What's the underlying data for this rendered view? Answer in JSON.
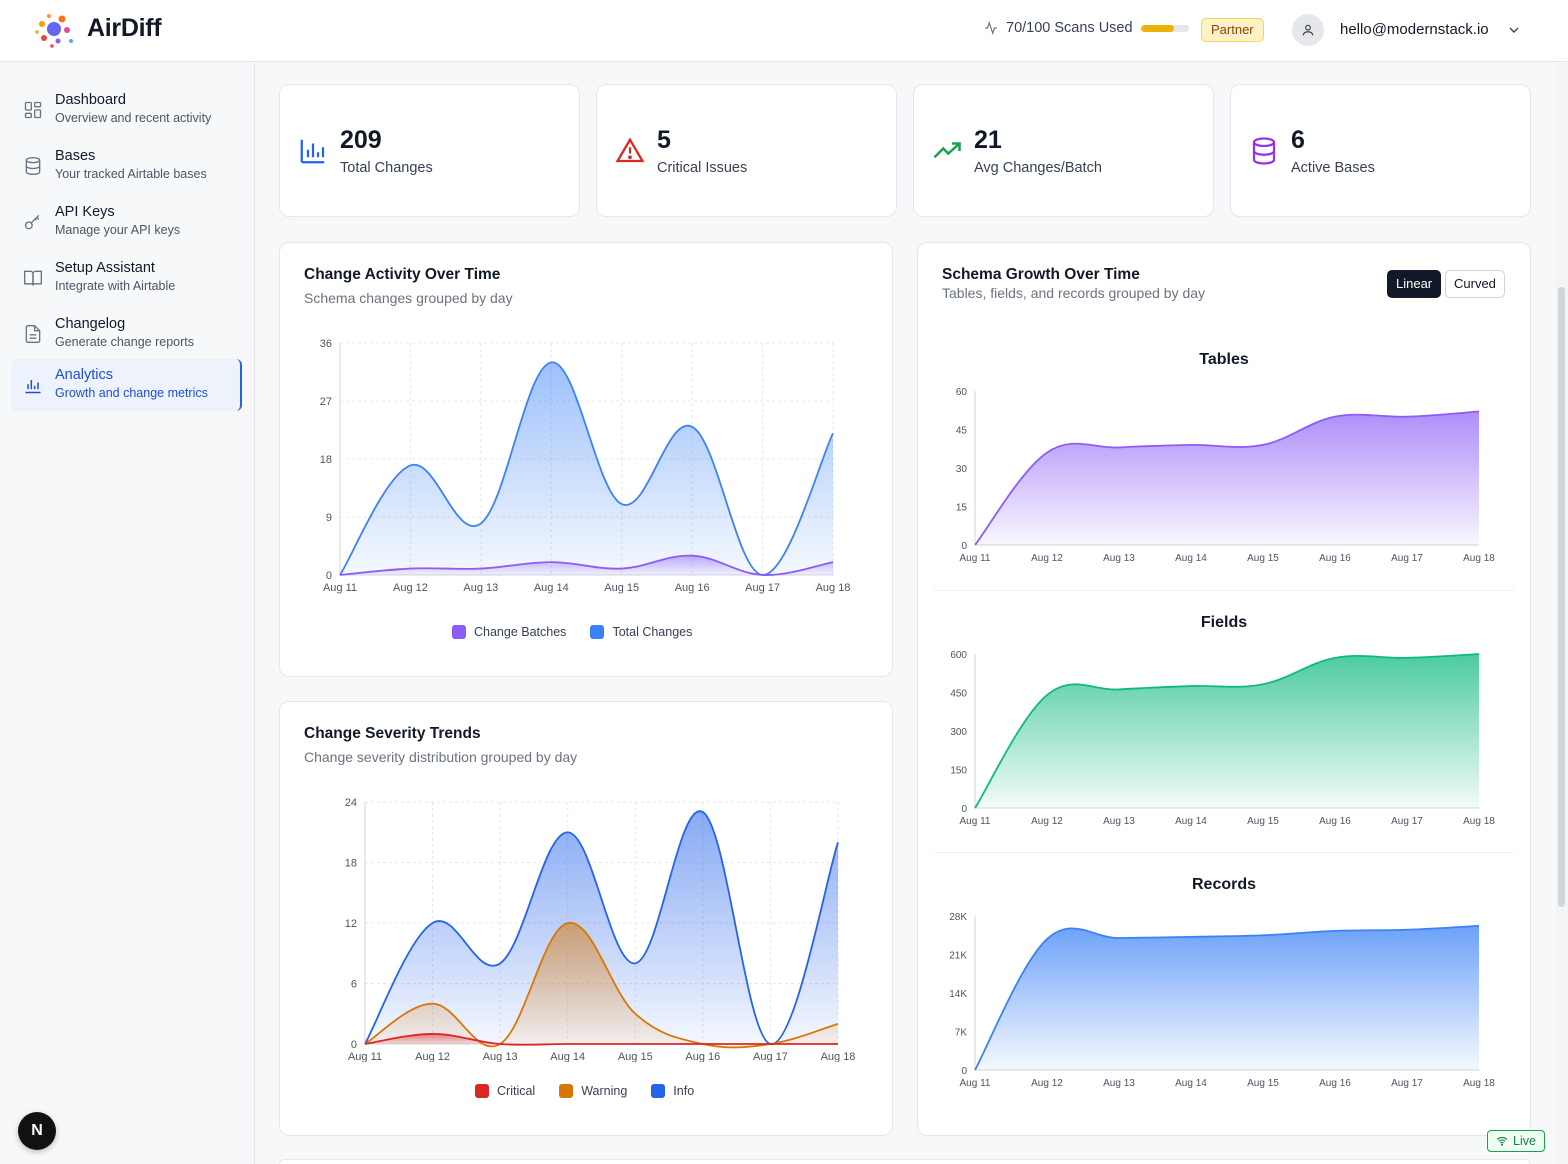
{
  "app": {
    "brand": "AirDiff"
  },
  "header": {
    "scans_label": "70/100 Scans Used",
    "scans_used": 70,
    "scans_total": 100,
    "plan_badge": "Partner",
    "user_email": "hello@modernstack.io",
    "icons": [
      "activity-icon",
      "user-icon",
      "chevron-down-icon"
    ]
  },
  "sidebar": {
    "items": [
      {
        "title": "Dashboard",
        "subtitle": "Overview and recent activity",
        "icon": "grid-icon"
      },
      {
        "title": "Bases",
        "subtitle": "Your tracked Airtable bases",
        "icon": "database-icon"
      },
      {
        "title": "API Keys",
        "subtitle": "Manage your API keys",
        "icon": "key-icon"
      },
      {
        "title": "Setup Assistant",
        "subtitle": "Integrate with Airtable",
        "icon": "book-icon"
      },
      {
        "title": "Changelog",
        "subtitle": "Generate change reports",
        "icon": "document-icon"
      },
      {
        "title": "Analytics",
        "subtitle": "Growth and change metrics",
        "icon": "bar-chart-icon",
        "active": true
      }
    ],
    "fab_label": "N"
  },
  "stats": [
    {
      "value": "209",
      "label": "Total Changes",
      "icon": "bar-chart-icon",
      "color": "#2563eb"
    },
    {
      "value": "5",
      "label": "Critical Issues",
      "icon": "warning-icon",
      "color": "#dc2626"
    },
    {
      "value": "21",
      "label": "Avg Changes/Batch",
      "icon": "trending-up-icon",
      "color": "#16a34a"
    },
    {
      "value": "6",
      "label": "Active Bases",
      "icon": "database-icon",
      "color": "#9333ea"
    }
  ],
  "activity_card": {
    "title": "Change Activity Over Time",
    "subtitle": "Schema changes grouped by day"
  },
  "severity_card": {
    "title": "Change Severity Trends",
    "subtitle": "Change severity distribution grouped by day"
  },
  "growth_card": {
    "title": "Schema Growth Over Time",
    "subtitle": "Tables, fields, and records grouped by day",
    "toggle_linear": "Linear",
    "toggle_curved": "Curved",
    "selected": "Linear"
  },
  "status": {
    "live_label": "Live"
  },
  "chart_data": [
    {
      "type": "area",
      "title": "Change Activity Over Time",
      "categories": [
        "Aug 11",
        "Aug 12",
        "Aug 13",
        "Aug 14",
        "Aug 15",
        "Aug 16",
        "Aug 17",
        "Aug 18"
      ],
      "ylim": [
        0,
        36
      ],
      "yticks": [
        "0",
        "9",
        "18",
        "27",
        "36"
      ],
      "grid": true,
      "legend": "bottom",
      "series": [
        {
          "name": "Change Batches",
          "color": "#8b5cf6",
          "values": [
            0,
            1,
            1,
            2,
            1,
            3,
            0,
            2
          ]
        },
        {
          "name": "Total Changes",
          "color": "#3b82f6",
          "values": [
            0,
            17,
            8,
            33,
            11,
            23,
            0,
            22
          ]
        }
      ]
    },
    {
      "type": "area",
      "title": "Change Severity Trends",
      "categories": [
        "Aug 11",
        "Aug 12",
        "Aug 13",
        "Aug 14",
        "Aug 15",
        "Aug 16",
        "Aug 17",
        "Aug 18"
      ],
      "ylim": [
        0,
        24
      ],
      "yticks": [
        "0",
        "6",
        "12",
        "18",
        "24"
      ],
      "grid": true,
      "legend": "bottom",
      "series": [
        {
          "name": "Critical",
          "color": "#dc2626",
          "values": [
            0,
            1,
            0,
            0,
            0,
            0,
            0,
            0
          ]
        },
        {
          "name": "Warning",
          "color": "#d97706",
          "values": [
            0,
            4,
            0,
            12,
            3,
            0,
            0,
            2
          ]
        },
        {
          "name": "Info",
          "color": "#2563eb",
          "values": [
            0,
            12,
            8,
            21,
            8,
            23,
            0,
            20
          ]
        }
      ]
    },
    {
      "type": "area",
      "title": "Tables",
      "categories": [
        "Aug 11",
        "Aug 12",
        "Aug 13",
        "Aug 14",
        "Aug 15",
        "Aug 16",
        "Aug 17",
        "Aug 18"
      ],
      "ylim": [
        0,
        60
      ],
      "yticks": [
        "0",
        "15",
        "30",
        "45",
        "60"
      ],
      "series": [
        {
          "name": "Tables",
          "color": "#8b5cf6",
          "values": [
            0,
            36,
            38,
            39,
            39,
            50,
            50,
            52
          ]
        }
      ]
    },
    {
      "type": "area",
      "title": "Fields",
      "categories": [
        "Aug 11",
        "Aug 12",
        "Aug 13",
        "Aug 14",
        "Aug 15",
        "Aug 16",
        "Aug 17",
        "Aug 18"
      ],
      "ylim": [
        0,
        600
      ],
      "yticks": [
        "0",
        "150",
        "300",
        "450",
        "600"
      ],
      "series": [
        {
          "name": "Fields",
          "color": "#10b981",
          "values": [
            0,
            440,
            462,
            475,
            482,
            585,
            585,
            600
          ]
        }
      ]
    },
    {
      "type": "area",
      "title": "Records",
      "categories": [
        "Aug 11",
        "Aug 12",
        "Aug 13",
        "Aug 14",
        "Aug 15",
        "Aug 16",
        "Aug 17",
        "Aug 18"
      ],
      "ylim": [
        0,
        28000
      ],
      "yticks": [
        "0",
        "7K",
        "14K",
        "21K",
        "28K"
      ],
      "series": [
        {
          "name": "Records",
          "color": "#3b82f6",
          "values": [
            0,
            23800,
            24000,
            24200,
            24500,
            25300,
            25500,
            26200
          ]
        }
      ]
    }
  ]
}
